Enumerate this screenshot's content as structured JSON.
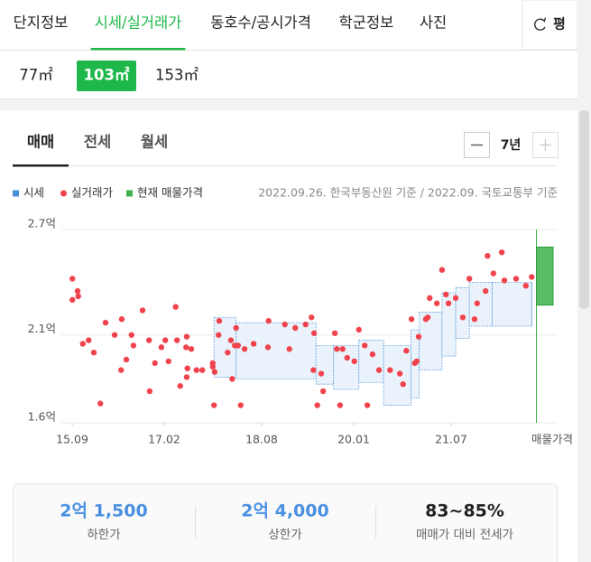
{
  "tabs": {
    "items": [
      "단지정보",
      "시세/실거래가",
      "동호수/공시가격",
      "학군정보",
      "사진"
    ],
    "active": 1,
    "unit_button": "평"
  },
  "sizes": {
    "items": [
      "77㎡",
      "103㎡",
      "153㎡"
    ],
    "active": 1
  },
  "deal_tabs": {
    "items": [
      "매매",
      "전세",
      "월세"
    ],
    "active": 0
  },
  "period": "7년",
  "source_note": "2022.09.26. 한국부동산원 기준 / 2022.09. 국토교통부 기준",
  "chart_data": {
    "type": "scatter",
    "xlim": [
      2015.5,
      2022.75
    ],
    "xticks": [
      {
        "value": 2015.667,
        "label": "15.09"
      },
      {
        "value": 2017.083,
        "label": "17.02"
      },
      {
        "value": 2018.583,
        "label": "18.08"
      },
      {
        "value": 2020.0,
        "label": "20.01"
      },
      {
        "value": 2021.5,
        "label": "21.07"
      }
    ],
    "ylim": [
      1.6,
      2.7
    ],
    "yticks": [
      {
        "value": 1.6,
        "label": "1.6억"
      },
      {
        "value": 2.1,
        "label": "2.1억"
      },
      {
        "value": 2.7,
        "label": "2.7억"
      }
    ],
    "grid": true,
    "series": [
      {
        "name": "시세",
        "type": "range-area",
        "color": "#4a90d9",
        "x": [
          2017.85,
          2018.19,
          2019.42,
          2019.69,
          2020.08,
          2020.46,
          2020.88,
          2021.01,
          2021.36,
          2021.57,
          2021.78,
          2022.13,
          2022.74
        ],
        "lower": [
          1.86,
          1.85,
          1.82,
          1.79,
          1.83,
          1.7,
          1.74,
          1.9,
          1.98,
          2.08,
          2.15,
          2.15,
          2.15
        ],
        "upper": [
          2.2,
          2.17,
          2.04,
          2.04,
          2.07,
          2.04,
          2.13,
          2.23,
          2.34,
          2.37,
          2.4,
          2.4,
          2.4
        ]
      },
      {
        "name": "실거래가",
        "type": "scatter",
        "color": "#f0434d",
        "x": [
          2015.67,
          2015.67,
          2015.75,
          2015.76,
          2015.83,
          2015.92,
          2016.0,
          2016.1,
          2016.18,
          2016.32,
          2016.42,
          2016.43,
          2016.5,
          2016.58,
          2016.61,
          2016.75,
          2016.85,
          2016.86,
          2016.94,
          2017.04,
          2017.1,
          2017.15,
          2017.26,
          2017.28,
          2017.33,
          2017.42,
          2017.43,
          2017.43,
          2017.44,
          2017.5,
          2017.58,
          2017.67,
          2017.83,
          2017.83,
          2017.85,
          2017.86,
          2017.92,
          2017.93,
          2018.06,
          2018.11,
          2018.13,
          2018.17,
          2018.19,
          2018.22,
          2018.26,
          2018.32,
          2018.46,
          2018.68,
          2018.69,
          2018.94,
          2019.01,
          2019.1,
          2019.26,
          2019.35,
          2019.38,
          2019.39,
          2019.44,
          2019.5,
          2019.53,
          2019.71,
          2019.74,
          2019.79,
          2019.83,
          2019.9,
          2020.01,
          2020.08,
          2020.17,
          2020.21,
          2020.29,
          2020.39,
          2020.56,
          2020.71,
          2020.76,
          2020.81,
          2020.89,
          2020.94,
          2020.97,
          2021.0,
          2021.11,
          2021.14,
          2021.17,
          2021.28,
          2021.36,
          2021.42,
          2021.46,
          2021.57,
          2021.68,
          2021.78,
          2021.86,
          2021.9,
          2022.03,
          2022.06,
          2022.15,
          2022.28,
          2022.32,
          2022.5,
          2022.65,
          2022.74
        ],
        "values": [
          2.42,
          2.3,
          2.35,
          2.32,
          2.05,
          2.07,
          2.0,
          1.71,
          2.17,
          2.1,
          1.9,
          2.19,
          1.96,
          2.1,
          2.04,
          2.24,
          2.07,
          1.78,
          1.94,
          2.03,
          2.07,
          1.95,
          2.26,
          2.07,
          1.81,
          2.03,
          2.09,
          1.86,
          1.91,
          2.02,
          1.9,
          1.9,
          1.94,
          1.92,
          1.7,
          1.89,
          2.1,
          2.18,
          2.0,
          2.07,
          1.85,
          2.04,
          2.14,
          2.04,
          1.7,
          2.02,
          2.05,
          2.03,
          2.18,
          2.16,
          2.02,
          2.14,
          2.16,
          2.2,
          1.9,
          2.11,
          1.7,
          1.88,
          1.78,
          2.11,
          2.02,
          1.7,
          2.02,
          1.97,
          1.95,
          2.13,
          2.04,
          1.7,
          1.99,
          1.9,
          1.9,
          1.88,
          1.82,
          2.01,
          2.19,
          1.94,
          1.95,
          2.09,
          2.19,
          2.2,
          2.31,
          2.28,
          2.47,
          2.33,
          2.28,
          2.31,
          2.2,
          2.42,
          2.19,
          2.28,
          2.35,
          2.55,
          2.45,
          2.57,
          2.41,
          2.42,
          2.38,
          2.43
        ]
      },
      {
        "name": "현재 매물가격",
        "type": "range-bar",
        "color": "#3cb34a",
        "category": "매물가격",
        "low": 2.27,
        "high": 2.6
      }
    ]
  },
  "summary": [
    {
      "value": "2억 1,500",
      "label": "하한가"
    },
    {
      "value": "2억 4,000",
      "label": "상한가"
    },
    {
      "value": "83~85%",
      "label": "매매가 대비 전세가"
    }
  ]
}
